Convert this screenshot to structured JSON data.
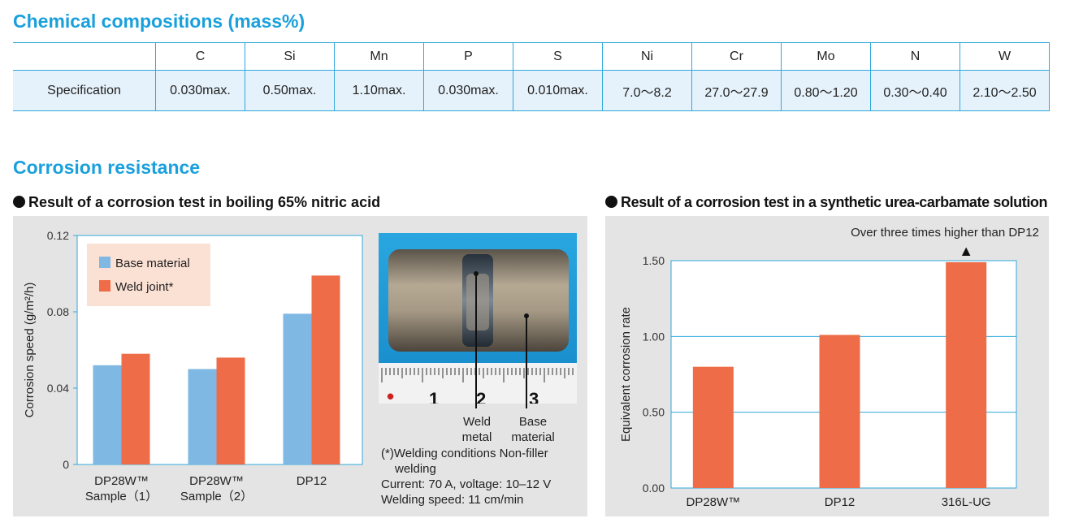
{
  "composition": {
    "title": "Chemical compositions (mass%)",
    "columns": [
      "C",
      "Si",
      "Mn",
      "P",
      "S",
      "Ni",
      "Cr",
      "Mo",
      "N",
      "W"
    ],
    "row_label": "Specification",
    "values": [
      "0.030max.",
      "0.50max.",
      "1.10max.",
      "0.030max.",
      "0.010max.",
      "7.0～8.2",
      "27.0～27.9",
      "0.80～1.20",
      "0.30～0.40",
      "2.10～2.50"
    ]
  },
  "corrosion": {
    "title": "Corrosion resistance",
    "nitric": {
      "title": "Result of a corrosion test in boiling 65% nitric acid",
      "photo": {
        "label_weld": [
          "Weld",
          "metal"
        ],
        "label_base": [
          "Base",
          "material"
        ]
      },
      "notes": [
        "(*)Welding conditions Non-filler",
        "welding",
        "Current: 70 A, voltage: 10–12 V",
        "Welding speed: 11 cm/min"
      ]
    },
    "urea": {
      "title": "Result of a corrosion test in a synthetic urea-carbamate solution",
      "annotation": "Over three times higher than DP12",
      "arrow": "▲"
    }
  },
  "chart_data": [
    {
      "type": "bar",
      "categories": [
        [
          "DP28W™",
          "Sample（1）"
        ],
        [
          "DP28W™",
          "Sample（2）"
        ],
        [
          "DP12"
        ]
      ],
      "series": [
        {
          "name": "Base material",
          "values": [
            0.052,
            0.05,
            0.079
          ],
          "color": "#7fb8e3"
        },
        {
          "name": "Weld joint*",
          "values": [
            0.058,
            0.056,
            0.099
          ],
          "color": "#ee6c47"
        }
      ],
      "ylabel": "Corrosion speed (g/m²/h)",
      "ylim": [
        0,
        0.12
      ],
      "yticks": [
        "0",
        "0.04",
        "0.08",
        "0.12"
      ],
      "legend": "top-left",
      "legend_bg": "#fbe0d4"
    },
    {
      "type": "bar",
      "categories": [
        "DP28W™",
        "DP12",
        "316L-UG"
      ],
      "values": [
        0.8,
        1.01,
        1.49
      ],
      "color": "#ee6c47",
      "ylabel": "Equivalent corrosion rate",
      "ylim": [
        0,
        1.5
      ],
      "yticks": [
        "0.00",
        "0.50",
        "1.00",
        "1.50"
      ],
      "grid": true,
      "grid_color": "#2fa8dc"
    }
  ]
}
